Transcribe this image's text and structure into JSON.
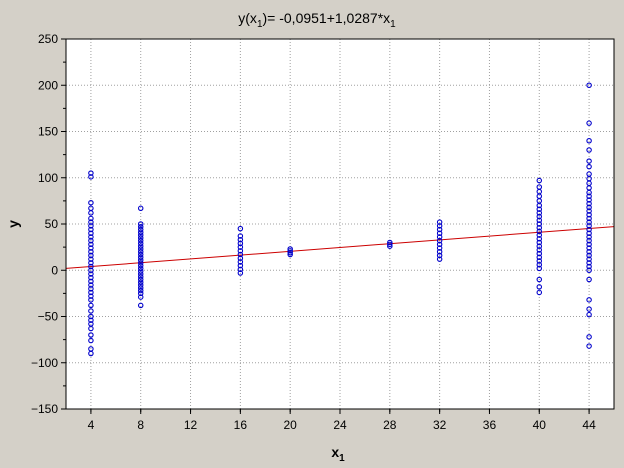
{
  "chart_data": {
    "type": "scatter",
    "title": {
      "main": "y(x",
      "sub1": "1",
      "mid": ")= -0,0951+1,0287*x",
      "sub2": "1"
    },
    "xlabel": {
      "main": "x",
      "sub": "1"
    },
    "ylabel": "y",
    "xlim": [
      2,
      46
    ],
    "ylim": [
      -150,
      250
    ],
    "xticks": [
      4,
      8,
      12,
      16,
      20,
      24,
      28,
      32,
      36,
      40,
      44
    ],
    "yticks": [
      -150,
      -100,
      -50,
      0,
      50,
      100,
      150,
      200,
      250
    ],
    "grid": true,
    "fit_line": {
      "intercept": -0.0951,
      "slope": 1.0287,
      "color": "#cc0000"
    },
    "marker_color": "#0000cc",
    "points": [
      {
        "x": 4,
        "y": 105
      },
      {
        "x": 4,
        "y": 101
      },
      {
        "x": 4,
        "y": 73
      },
      {
        "x": 4,
        "y": 67
      },
      {
        "x": 4,
        "y": 62
      },
      {
        "x": 4,
        "y": 56
      },
      {
        "x": 4,
        "y": 52
      },
      {
        "x": 4,
        "y": 48
      },
      {
        "x": 4,
        "y": 44
      },
      {
        "x": 4,
        "y": 40
      },
      {
        "x": 4,
        "y": 36
      },
      {
        "x": 4,
        "y": 32
      },
      {
        "x": 4,
        "y": 28
      },
      {
        "x": 4,
        "y": 24
      },
      {
        "x": 4,
        "y": 20
      },
      {
        "x": 4,
        "y": 16
      },
      {
        "x": 4,
        "y": 12
      },
      {
        "x": 4,
        "y": 8
      },
      {
        "x": 4,
        "y": 4
      },
      {
        "x": 4,
        "y": 0
      },
      {
        "x": 4,
        "y": -4
      },
      {
        "x": 4,
        "y": -8
      },
      {
        "x": 4,
        "y": -12
      },
      {
        "x": 4,
        "y": -16
      },
      {
        "x": 4,
        "y": -20
      },
      {
        "x": 4,
        "y": -24
      },
      {
        "x": 4,
        "y": -28
      },
      {
        "x": 4,
        "y": -32
      },
      {
        "x": 4,
        "y": -38
      },
      {
        "x": 4,
        "y": -44
      },
      {
        "x": 4,
        "y": -50
      },
      {
        "x": 4,
        "y": -54
      },
      {
        "x": 4,
        "y": -58
      },
      {
        "x": 4,
        "y": -63
      },
      {
        "x": 4,
        "y": -70
      },
      {
        "x": 4,
        "y": -76
      },
      {
        "x": 4,
        "y": -85
      },
      {
        "x": 4,
        "y": -90
      },
      {
        "x": 8,
        "y": 67
      },
      {
        "x": 8,
        "y": 50
      },
      {
        "x": 8,
        "y": 47
      },
      {
        "x": 8,
        "y": 44
      },
      {
        "x": 8,
        "y": 41
      },
      {
        "x": 8,
        "y": 38
      },
      {
        "x": 8,
        "y": 35
      },
      {
        "x": 8,
        "y": 32
      },
      {
        "x": 8,
        "y": 29
      },
      {
        "x": 8,
        "y": 26
      },
      {
        "x": 8,
        "y": 23
      },
      {
        "x": 8,
        "y": 20
      },
      {
        "x": 8,
        "y": 17
      },
      {
        "x": 8,
        "y": 14
      },
      {
        "x": 8,
        "y": 11
      },
      {
        "x": 8,
        "y": 8
      },
      {
        "x": 8,
        "y": 5
      },
      {
        "x": 8,
        "y": 2
      },
      {
        "x": 8,
        "y": -1
      },
      {
        "x": 8,
        "y": -4
      },
      {
        "x": 8,
        "y": -7
      },
      {
        "x": 8,
        "y": -10
      },
      {
        "x": 8,
        "y": -13
      },
      {
        "x": 8,
        "y": -16
      },
      {
        "x": 8,
        "y": -19
      },
      {
        "x": 8,
        "y": -22
      },
      {
        "x": 8,
        "y": -25
      },
      {
        "x": 8,
        "y": -29
      },
      {
        "x": 8,
        "y": -38
      },
      {
        "x": 16,
        "y": 45
      },
      {
        "x": 16,
        "y": 37
      },
      {
        "x": 16,
        "y": 33
      },
      {
        "x": 16,
        "y": 29
      },
      {
        "x": 16,
        "y": 25
      },
      {
        "x": 16,
        "y": 21
      },
      {
        "x": 16,
        "y": 17
      },
      {
        "x": 16,
        "y": 13
      },
      {
        "x": 16,
        "y": 9
      },
      {
        "x": 16,
        "y": 5
      },
      {
        "x": 16,
        "y": 1
      },
      {
        "x": 16,
        "y": -3
      },
      {
        "x": 20,
        "y": 23
      },
      {
        "x": 20,
        "y": 21
      },
      {
        "x": 20,
        "y": 19
      },
      {
        "x": 20,
        "y": 17
      },
      {
        "x": 28,
        "y": 30
      },
      {
        "x": 28,
        "y": 28
      },
      {
        "x": 28,
        "y": 26
      },
      {
        "x": 32,
        "y": 52
      },
      {
        "x": 32,
        "y": 48
      },
      {
        "x": 32,
        "y": 44
      },
      {
        "x": 32,
        "y": 40
      },
      {
        "x": 32,
        "y": 36
      },
      {
        "x": 32,
        "y": 32
      },
      {
        "x": 32,
        "y": 28
      },
      {
        "x": 32,
        "y": 24
      },
      {
        "x": 32,
        "y": 20
      },
      {
        "x": 32,
        "y": 16
      },
      {
        "x": 32,
        "y": 12
      },
      {
        "x": 40,
        "y": 97
      },
      {
        "x": 40,
        "y": 90
      },
      {
        "x": 40,
        "y": 85
      },
      {
        "x": 40,
        "y": 80
      },
      {
        "x": 40,
        "y": 75
      },
      {
        "x": 40,
        "y": 70
      },
      {
        "x": 40,
        "y": 66
      },
      {
        "x": 40,
        "y": 62
      },
      {
        "x": 40,
        "y": 58
      },
      {
        "x": 40,
        "y": 54
      },
      {
        "x": 40,
        "y": 50
      },
      {
        "x": 40,
        "y": 46
      },
      {
        "x": 40,
        "y": 42
      },
      {
        "x": 40,
        "y": 38
      },
      {
        "x": 40,
        "y": 34
      },
      {
        "x": 40,
        "y": 30
      },
      {
        "x": 40,
        "y": 26
      },
      {
        "x": 40,
        "y": 22
      },
      {
        "x": 40,
        "y": 18
      },
      {
        "x": 40,
        "y": 14
      },
      {
        "x": 40,
        "y": 10
      },
      {
        "x": 40,
        "y": 6
      },
      {
        "x": 40,
        "y": 2
      },
      {
        "x": 40,
        "y": -10
      },
      {
        "x": 40,
        "y": -18
      },
      {
        "x": 40,
        "y": -24
      },
      {
        "x": 44,
        "y": 200
      },
      {
        "x": 44,
        "y": 159
      },
      {
        "x": 44,
        "y": 140
      },
      {
        "x": 44,
        "y": 130
      },
      {
        "x": 44,
        "y": 118
      },
      {
        "x": 44,
        "y": 112
      },
      {
        "x": 44,
        "y": 104
      },
      {
        "x": 44,
        "y": 99
      },
      {
        "x": 44,
        "y": 94
      },
      {
        "x": 44,
        "y": 89
      },
      {
        "x": 44,
        "y": 84
      },
      {
        "x": 44,
        "y": 80
      },
      {
        "x": 44,
        "y": 76
      },
      {
        "x": 44,
        "y": 72
      },
      {
        "x": 44,
        "y": 68
      },
      {
        "x": 44,
        "y": 64
      },
      {
        "x": 44,
        "y": 60
      },
      {
        "x": 44,
        "y": 56
      },
      {
        "x": 44,
        "y": 52
      },
      {
        "x": 44,
        "y": 48
      },
      {
        "x": 44,
        "y": 44
      },
      {
        "x": 44,
        "y": 40
      },
      {
        "x": 44,
        "y": 36
      },
      {
        "x": 44,
        "y": 32
      },
      {
        "x": 44,
        "y": 28
      },
      {
        "x": 44,
        "y": 24
      },
      {
        "x": 44,
        "y": 20
      },
      {
        "x": 44,
        "y": 16
      },
      {
        "x": 44,
        "y": 12
      },
      {
        "x": 44,
        "y": 8
      },
      {
        "x": 44,
        "y": 4
      },
      {
        "x": 44,
        "y": 0
      },
      {
        "x": 44,
        "y": -10
      },
      {
        "x": 44,
        "y": -32
      },
      {
        "x": 44,
        "y": -42
      },
      {
        "x": 44,
        "y": -48
      },
      {
        "x": 44,
        "y": -72
      },
      {
        "x": 44,
        "y": -82
      }
    ]
  }
}
